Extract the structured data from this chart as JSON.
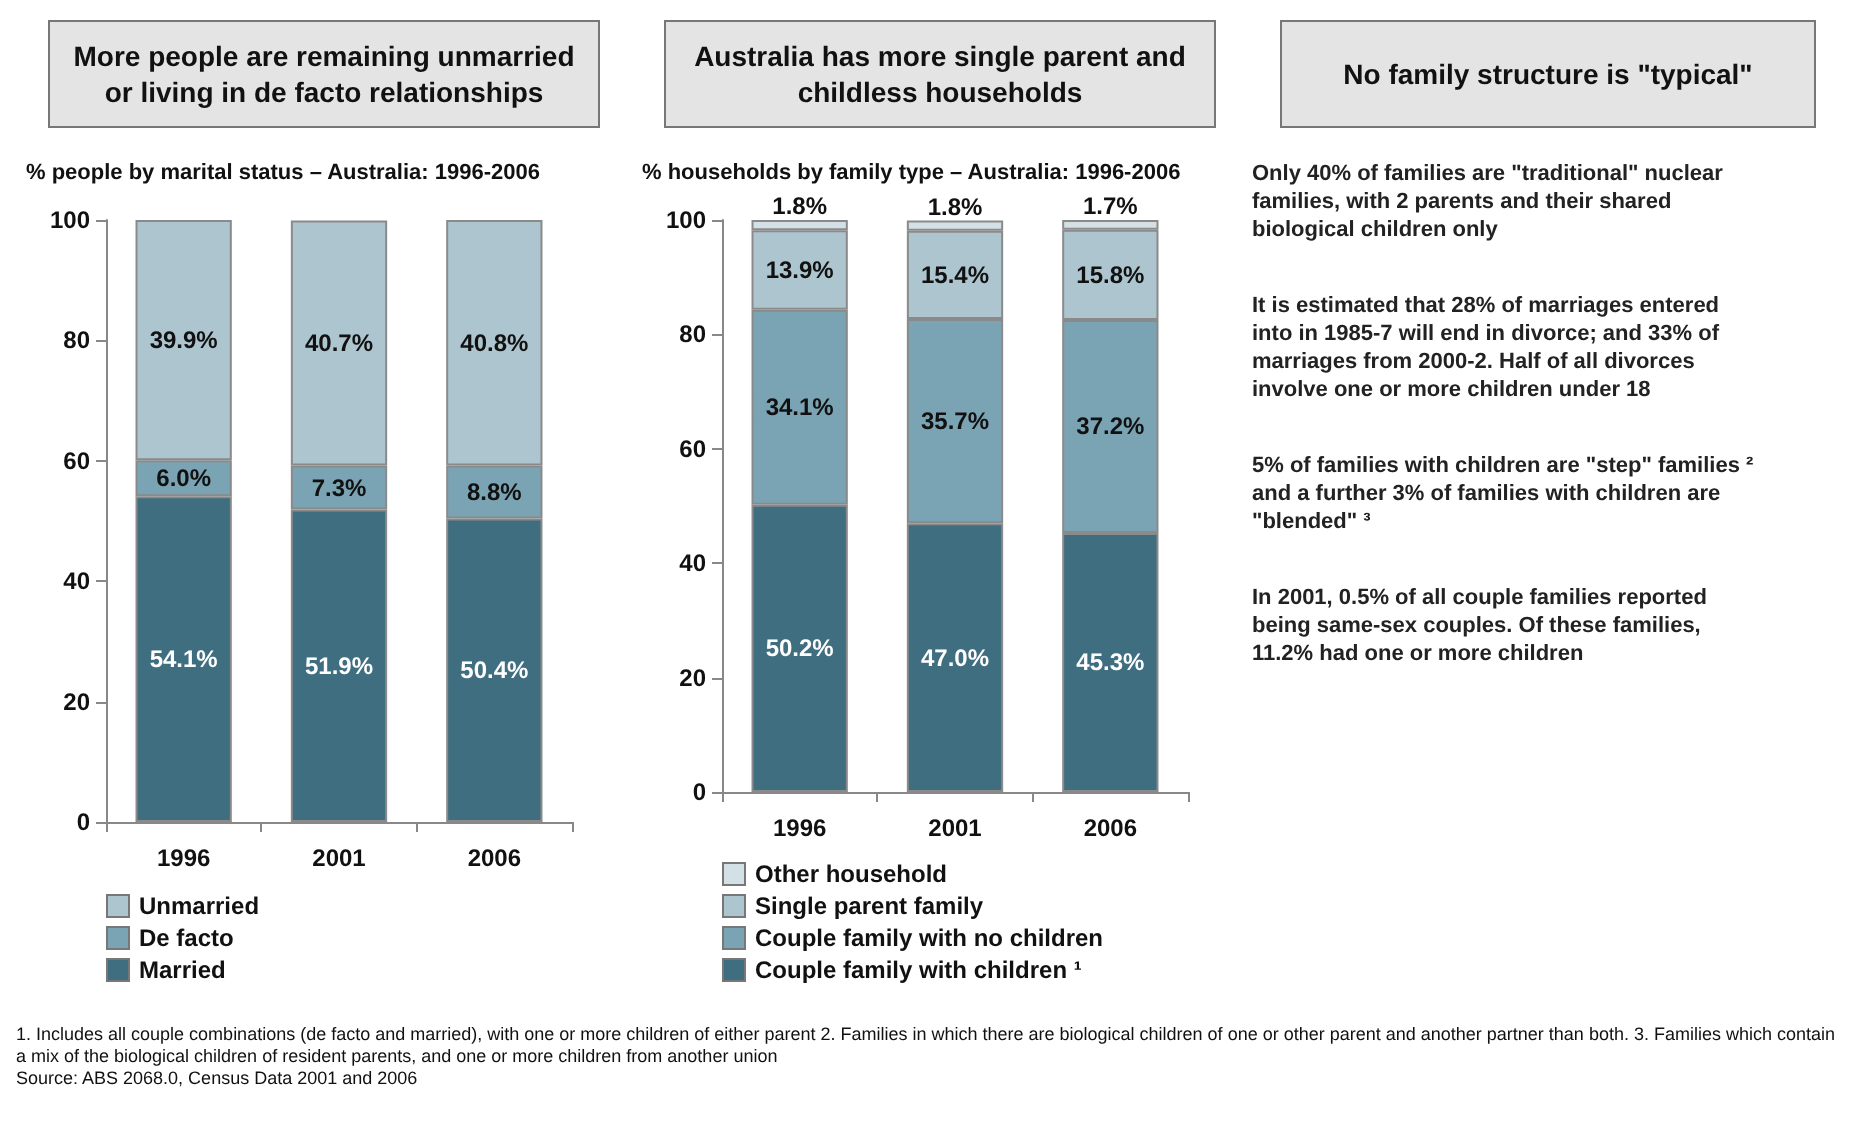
{
  "chart_data": [
    {
      "type": "bar",
      "title": "More people are remaining unmarried or living in de facto relationships",
      "subtitle": "% people by marital status – Australia: 1996-2006",
      "categories": [
        "1996",
        "2001",
        "2006"
      ],
      "stacked": true,
      "ylim": [
        0,
        100
      ],
      "yticks": [
        0,
        20,
        40,
        60,
        80,
        100
      ],
      "grid": false,
      "legend": "bottom",
      "series": [
        {
          "name": "Married",
          "color": "#3f6e80",
          "values": [
            54.1,
            51.9,
            50.4
          ],
          "value_labels": [
            "54.1%",
            "51.9%",
            "50.4%"
          ]
        },
        {
          "name": "De facto",
          "color": "#7aa3b3",
          "values": [
            6.0,
            7.3,
            8.8
          ],
          "value_labels": [
            "6.0%",
            "7.3%",
            "8.8%"
          ]
        },
        {
          "name": "Unmarried",
          "color": "#adc5ce",
          "values": [
            39.9,
            40.7,
            40.8
          ],
          "value_labels": [
            "39.9%",
            "40.7%",
            "40.8%"
          ]
        }
      ],
      "annotations": [
        "1. Includes all couple combinations (de facto and married), with one or more children of either parent  2. Families in which there are biological children of one or other parent and another partner than both.  3. Families which contain a mix of the biological children of resident parents, and one or more children from another union",
        "Source: ABS 2068.0, Census Data 2001 and 2006"
      ]
    },
    {
      "type": "bar",
      "title": "Australia has more single parent and childless households",
      "subtitle": "% households by family type – Australia: 1996-2006",
      "categories": [
        "1996",
        "2001",
        "2006"
      ],
      "stacked": true,
      "ylim": [
        0,
        100
      ],
      "yticks": [
        0,
        20,
        40,
        60,
        80,
        100
      ],
      "grid": false,
      "legend": "bottom",
      "series": [
        {
          "name": "Couple family with children ¹",
          "color": "#3f6e80",
          "values": [
            50.2,
            47.0,
            45.3
          ],
          "value_labels": [
            "50.2%",
            "47.0%",
            "45.3%"
          ]
        },
        {
          "name": "Couple family with no children",
          "color": "#7aa3b3",
          "values": [
            34.1,
            35.7,
            37.2
          ],
          "value_labels": [
            "34.1%",
            "35.7%",
            "37.2%"
          ]
        },
        {
          "name": "Single parent family",
          "color": "#adc5ce",
          "values": [
            13.9,
            15.4,
            15.8
          ],
          "value_labels": [
            "13.9%",
            "15.4%",
            "15.8%"
          ]
        },
        {
          "name": "Other household",
          "color": "#d3e1e6",
          "values": [
            1.8,
            1.8,
            1.7
          ],
          "value_labels": [
            "1.8%",
            "1.8%",
            "1.7%"
          ]
        }
      ]
    },
    {
      "type": "other",
      "title": "No family structure is \"typical\"",
      "annotations": [
        "Only 40% of families are \"traditional\" nuclear families, with 2 parents and their shared biological children only",
        "It is estimated that 28% of marriages entered into in 1985-7 will end in divorce; and 33% of marriages from 2000-2.  Half of all divorces involve one or more children under 18",
        "5% of families with children are \"step\" families ² and a further 3% of families with children are \"blended\" ³",
        "In 2001, 0.5% of all couple families reported being same-sex couples.  Of these families, 11.2% had one or more children"
      ]
    }
  ]
}
